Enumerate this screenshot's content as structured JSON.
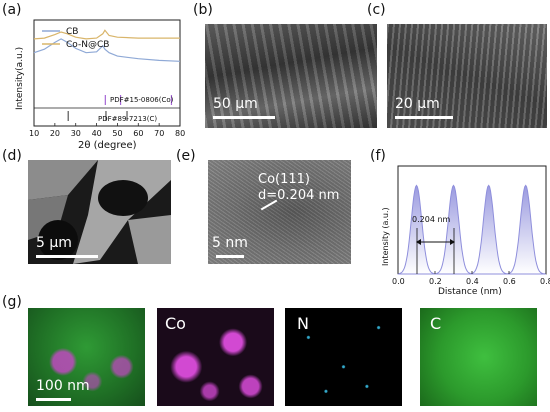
{
  "panels": {
    "a": "(a)",
    "b": "(b)",
    "c": "(c)",
    "d": "(d)",
    "e": "(e)",
    "f": "(f)",
    "g": "(g)"
  },
  "chart_data": [
    {
      "type": "line",
      "panel": "(a)",
      "xlabel": "2θ (degree)",
      "ylabel": "Intensity(a.u.)",
      "xlim": [
        10,
        80
      ],
      "xticks": [
        "10",
        "20",
        "30",
        "40",
        "50",
        "60",
        "70",
        "80"
      ],
      "series": [
        {
          "name": "CB",
          "color": "#8fa9d6",
          "x": [
            10,
            15,
            20,
            23,
            26,
            30,
            35,
            40,
            43,
            44,
            46,
            50,
            60,
            70,
            80
          ],
          "y": [
            0.62,
            0.66,
            0.74,
            0.78,
            0.74,
            0.67,
            0.62,
            0.63,
            0.7,
            0.66,
            0.62,
            0.58,
            0.55,
            0.53,
            0.52
          ]
        },
        {
          "name": "Co-N@CB",
          "color": "#d9b56a",
          "x": [
            10,
            15,
            20,
            23,
            26,
            30,
            35,
            40,
            43,
            44,
            46,
            50,
            60,
            70,
            80
          ],
          "y": [
            0.78,
            0.79,
            0.83,
            0.86,
            0.84,
            0.8,
            0.78,
            0.79,
            0.84,
            0.88,
            0.82,
            0.8,
            0.79,
            0.79,
            0.79
          ]
        }
      ],
      "reference_patterns": [
        {
          "label": "PDF#15-0806(Co)",
          "color": "#a566d6",
          "peaks": [
            44.2,
            51.5,
            75.9
          ]
        },
        {
          "label": "PDF#89-7213(C)",
          "color": "#555555",
          "peaks": [
            26.4,
            44.5,
            54.6
          ]
        }
      ]
    },
    {
      "type": "line",
      "panel": "(f)",
      "xlabel": "Distance (nm)",
      "ylabel": "Intensity (a.u.)",
      "xlim": [
        0.0,
        0.8
      ],
      "ylim": [
        0,
        1
      ],
      "xticks": [
        "0.0",
        "0.2",
        "0.4",
        "0.6",
        "0.8"
      ],
      "peaks_x": [
        0.1,
        0.3,
        0.49,
        0.69
      ],
      "annotation": "0.204 nm",
      "color": "#8f8fdc"
    }
  ],
  "micrographs": {
    "b": {
      "scale": "50 μm"
    },
    "c": {
      "scale": "20 μm"
    },
    "d": {
      "scale": "5 μm"
    },
    "e": {
      "scale": "5 nm",
      "annotation_line1": "Co(111)",
      "annotation_line2": "d=0.204 nm"
    },
    "g": {
      "scale": "100 nm",
      "maps": [
        "Co",
        "N",
        "C"
      ]
    }
  },
  "colors": {
    "cb": "#8fa9d6",
    "conc": "#d9b56a",
    "pdf_co": "#a566d6",
    "profile": "#8f8fdc",
    "map_green": "#2fae3a",
    "map_magenta": "#d03ad0"
  }
}
